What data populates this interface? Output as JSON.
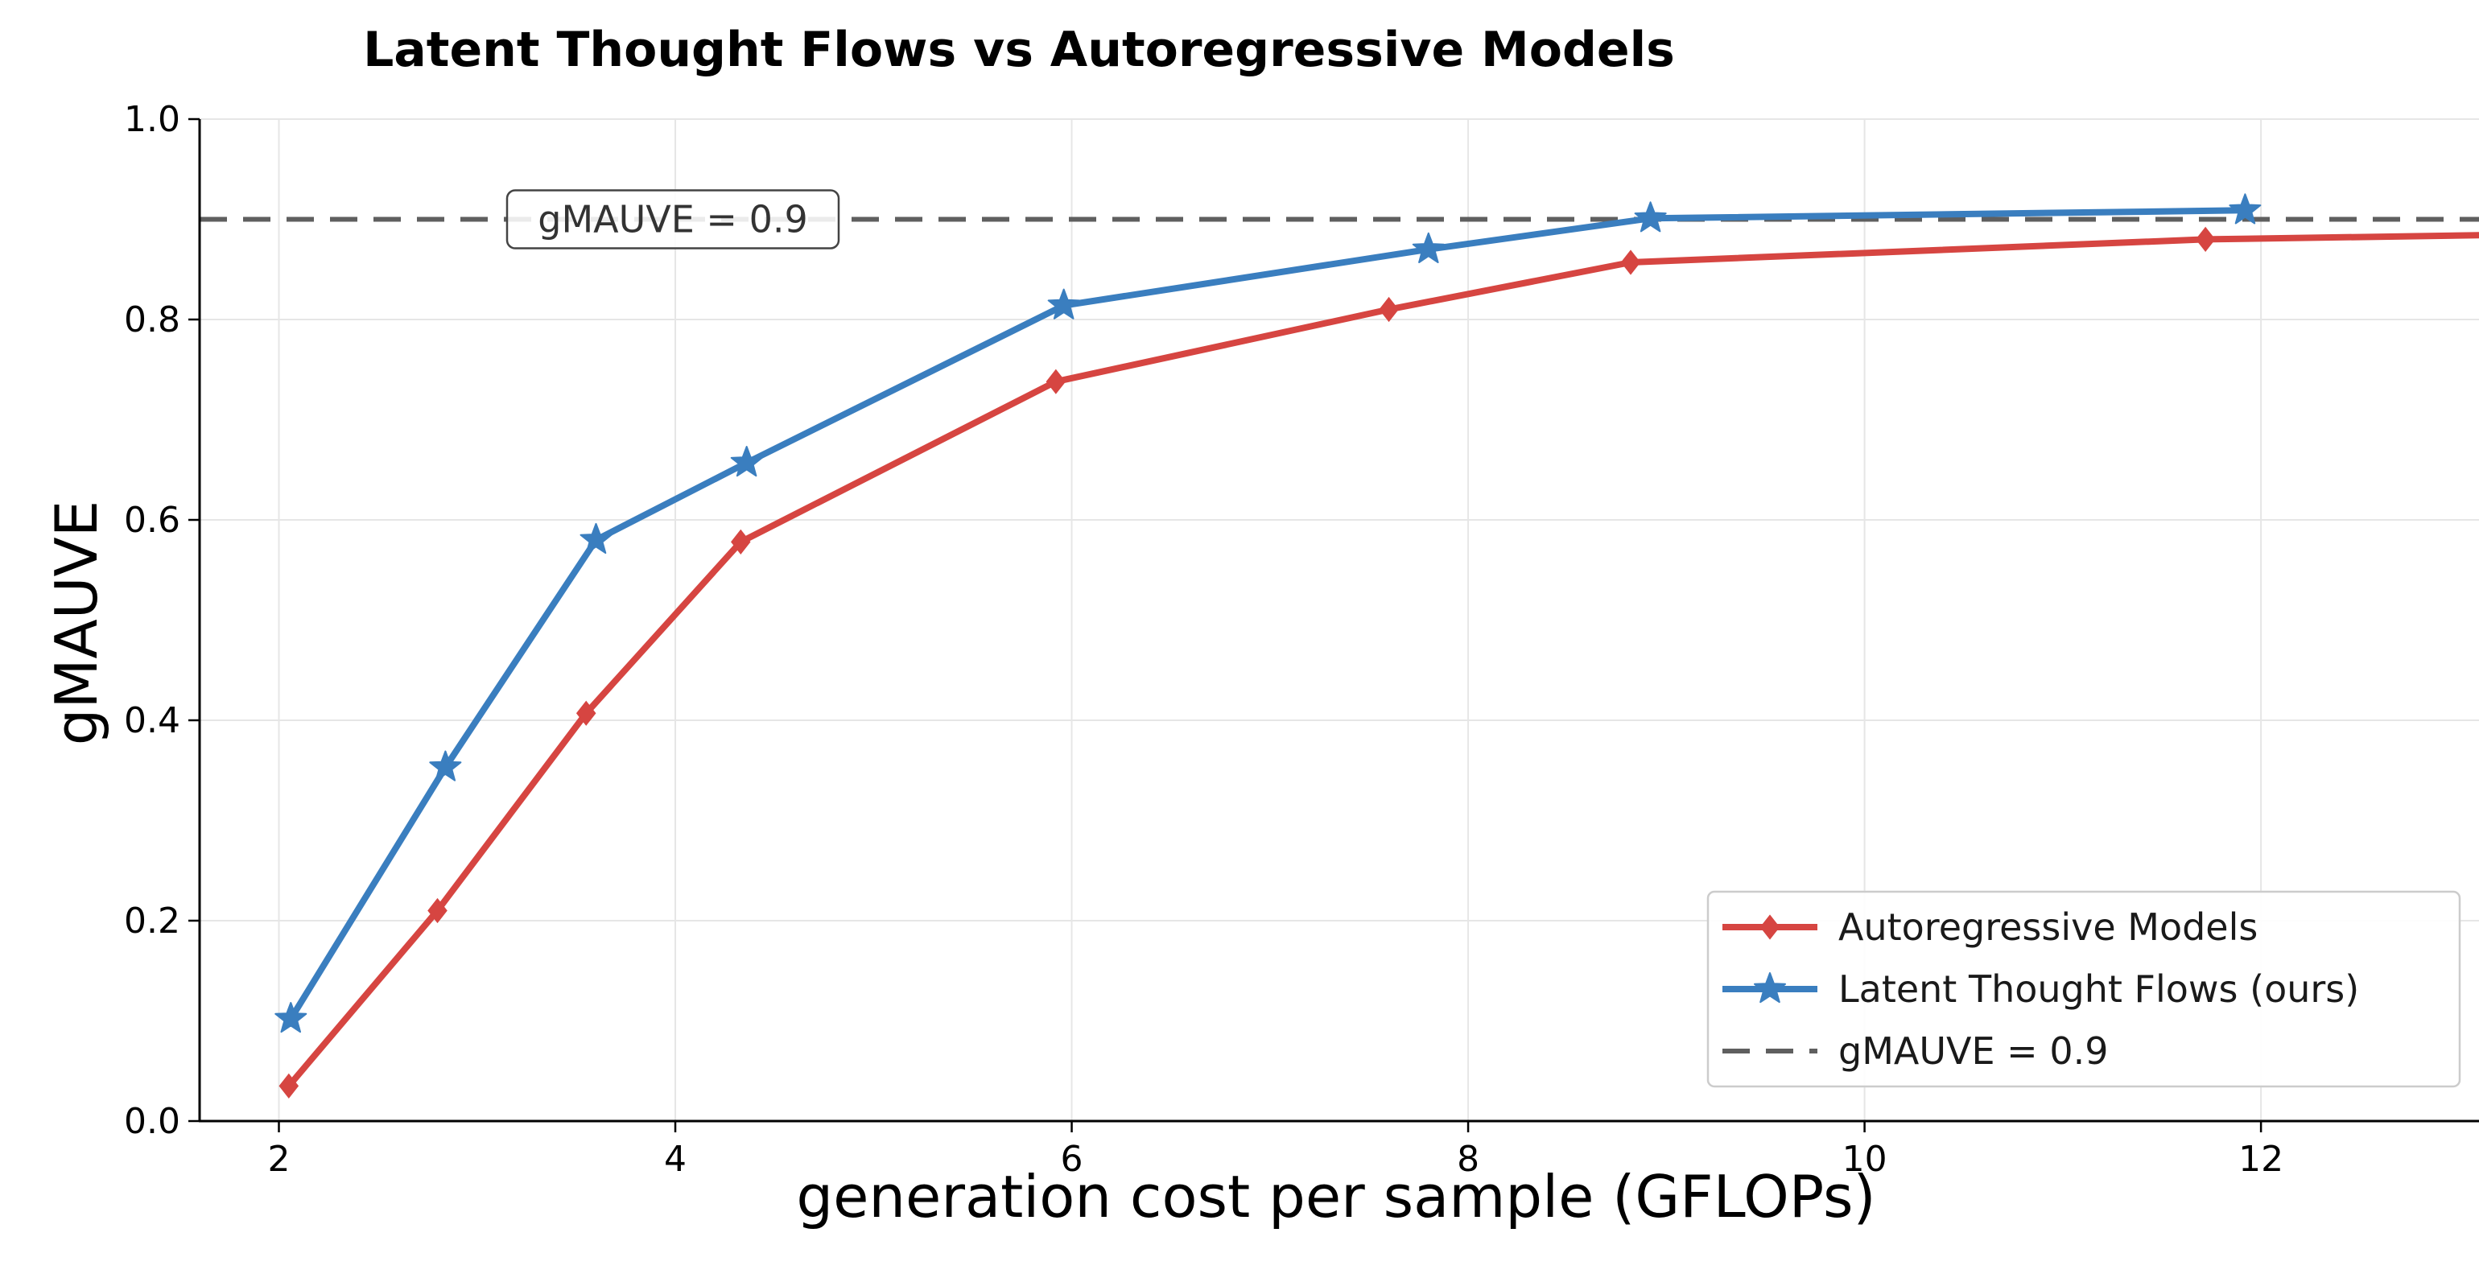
{
  "chart_data": {
    "type": "line",
    "title": "Latent Thought Flows vs Autoregressive Models",
    "xlabel": "generation cost per sample (GFLOPs)",
    "ylabel": "gMAUVE",
    "xlim": [
      1.6,
      13.1
    ],
    "ylim": [
      0.0,
      1.0
    ],
    "xticks": [
      2,
      4,
      6,
      8,
      10,
      12
    ],
    "xtick_labels": [
      "2",
      "4",
      "6",
      "8",
      "10",
      "12"
    ],
    "yticks": [
      0.0,
      0.2,
      0.4,
      0.6,
      0.8,
      1.0
    ],
    "ytick_labels": [
      "0.0",
      "0.2",
      "0.4",
      "0.6",
      "0.8",
      "1.0"
    ],
    "grid": true,
    "legend_position": "lower-right",
    "series": [
      {
        "name": "Autoregressive Models",
        "color": "#d64541",
        "marker": "diamond",
        "points": [
          {
            "x": 2.05,
            "y": 0.035
          },
          {
            "x": 2.8,
            "y": 0.21
          },
          {
            "x": 3.55,
            "y": 0.407
          },
          {
            "x": 4.33,
            "y": 0.578
          },
          {
            "x": 5.92,
            "y": 0.738
          },
          {
            "x": 7.6,
            "y": 0.81
          },
          {
            "x": 8.82,
            "y": 0.857
          },
          {
            "x": 11.72,
            "y": 0.88
          },
          {
            "x": 13.4,
            "y": 0.885
          }
        ]
      },
      {
        "name": "Latent Thought Flows (ours)",
        "color": "#3a7ebf",
        "marker": "star",
        "points": [
          {
            "x": 2.06,
            "y": 0.102
          },
          {
            "x": 2.84,
            "y": 0.353
          },
          {
            "x": 3.6,
            "y": 0.58
          },
          {
            "x": 4.36,
            "y": 0.657
          },
          {
            "x": 5.96,
            "y": 0.814
          },
          {
            "x": 7.8,
            "y": 0.87
          },
          {
            "x": 8.92,
            "y": 0.901
          },
          {
            "x": 11.92,
            "y": 0.909
          }
        ]
      }
    ],
    "reference_line": {
      "name": "gMAUVE = 0.9",
      "y": 0.9,
      "color": "#5f5f5f",
      "style": "dashed",
      "annotation": "gMAUVE = 0.9"
    }
  }
}
